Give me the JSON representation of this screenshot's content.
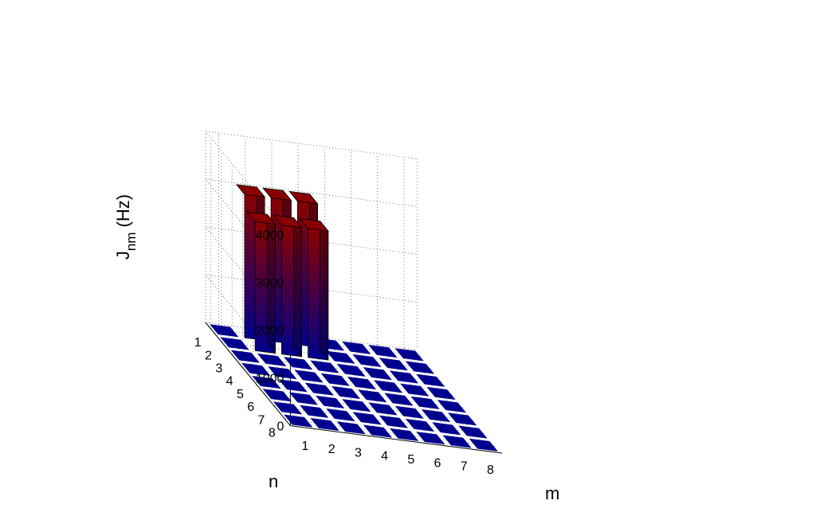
{
  "chart_data": {
    "type": "bar3d",
    "title": "",
    "xlabel": "m",
    "ylabel": "n",
    "zlabel_main": "J",
    "zlabel_sub": "nm",
    "zlabel_unit": "(Hz)",
    "x_ticks": [
      "1",
      "2",
      "3",
      "4",
      "5",
      "6",
      "7",
      "8"
    ],
    "y_ticks": [
      "1",
      "2",
      "3",
      "4",
      "5",
      "6",
      "7",
      "8"
    ],
    "z_ticks": [
      "0",
      "1000",
      "2000",
      "3000",
      "4000"
    ],
    "zlim": [
      0,
      4000
    ],
    "grid": true,
    "colors": {
      "low": "#00008f",
      "high": "#8a0000",
      "edge": "#000000"
    },
    "bars": [
      {
        "n": 1,
        "m": 2,
        "value": 3000
      },
      {
        "n": 1,
        "m": 3,
        "value": 3000
      },
      {
        "n": 1,
        "m": 4,
        "value": 3000
      },
      {
        "n": 2,
        "m": 2,
        "value": 2700
      },
      {
        "n": 2,
        "m": 3,
        "value": 2700
      },
      {
        "n": 2,
        "m": 4,
        "value": 2700
      },
      {
        "n": 3,
        "m": 2,
        "value": 0
      },
      {
        "n": 3,
        "m": 3,
        "value": 0
      },
      {
        "n": 3,
        "m": 4,
        "value": 0
      }
    ]
  }
}
